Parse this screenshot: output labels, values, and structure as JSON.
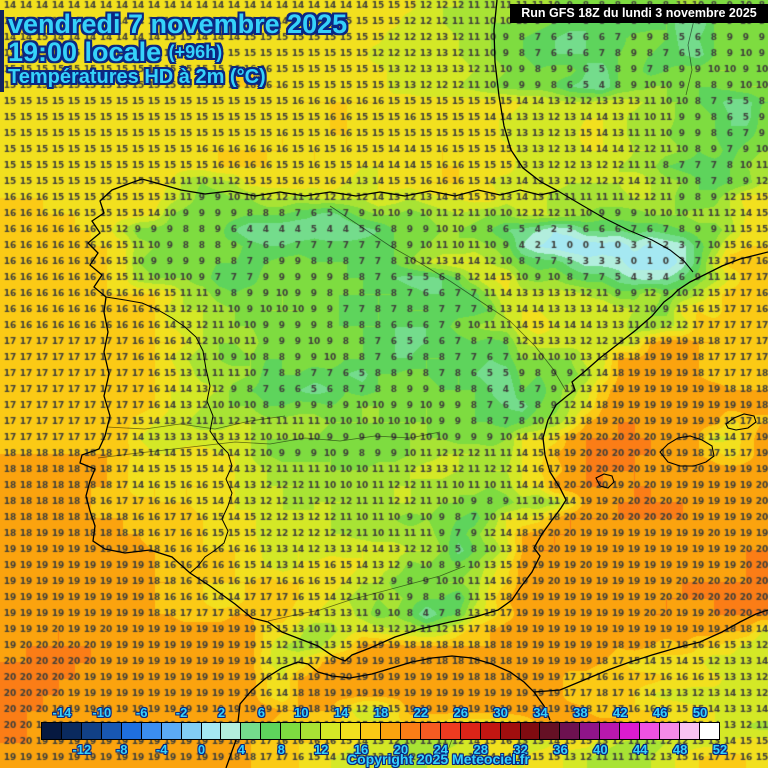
{
  "header": {
    "date_line": "vendredi 7 novembre 2025",
    "time_line": "19:00 locale",
    "time_offset": "(+96h)",
    "subtitle": "Températures HD à 2m (°C)"
  },
  "run_info": "Run GFS 18Z du lundi 3 novembre 2025",
  "copyright": "Copyright 2025 Meteociel.fr",
  "legend": {
    "min": -16,
    "max": 52,
    "step": 2,
    "top_labels": [
      -14,
      -10,
      -6,
      -2,
      2,
      6,
      10,
      14,
      18,
      22,
      26,
      30,
      34,
      38,
      42,
      46,
      50
    ],
    "bottom_labels": [
      -12,
      -8,
      -4,
      0,
      4,
      8,
      12,
      16,
      20,
      24,
      28,
      32,
      36,
      40,
      44,
      48,
      52
    ],
    "palette": [
      "#061940",
      "#0a2a5e",
      "#114086",
      "#1857b2",
      "#1f6fde",
      "#3b8ef0",
      "#5cabf5",
      "#82cdf5",
      "#a5e8f2",
      "#b2eedd",
      "#74dc8c",
      "#5ed45c",
      "#7edc40",
      "#a8e334",
      "#d4e826",
      "#f2e01e",
      "#fbca15",
      "#fba30e",
      "#fb7d16",
      "#f65b22",
      "#ee3b20",
      "#dc2418",
      "#c21612",
      "#a10e0e",
      "#800b10",
      "#651024",
      "#6d1150",
      "#8f1489",
      "#b818ad",
      "#dc1bd0",
      "#ef52e2",
      "#f58ae8",
      "#f9c2f2",
      "#ffffff"
    ]
  },
  "map": {
    "cols": 48,
    "rows": 48,
    "number_color": "#3f3f3b",
    "values": [
      "14 14 14 14 14 14 14 14 14 14 14 14 14 14 14 14 14 14 14 14 14 14 14 15 15 15 12 12 12 11 11 11 11 11 10 9 8 8 8 8 8 8 11 10 8 9 10 8",
      "14 14 14 14 14 14 14 14 14 14 14 14 14 14 14 14 14 14 14 14 15 15 15 15 15 12 12 12 11 11 10 10 10 9 8 7 6 6 6 6 7 8 4 4 8 9 10 8",
      "14 14 15 14 14 14 14 14 14 14 15 15 14 14 14 15 15 15 15 15 15 15 15 15 12 12 12 13 12 11 10 9 8 7 6 5 6 6 7 9 9 8 5 6 8 9 9 9",
      "15 15 15 15 15 15 15 15 15 15 15 15 15 15 15 15 15 15 15 15 15 15 15 12 12 12 13 13 12 11 10 9 8 7 6 6 6 7 8 9 8 7 6 5 8 9 10 9",
      "15 15 15 15 15 15 15 15 15 15 15 15 15 15 16 16 16 15 15 15 15 15 15 15 13 12 13 13 13 12 11 10 9 8 9 9 6 5 8 9 7 8 9 9 10 10 9 10",
      "15 15 15 15 15 15 15 15 15 15 15 15 15 15 16 16 16 16 15 15 15 15 15 15 13 13 12 12 12 11 10 9 9 9 8 6 5 4 8 9 10 10 9 8 8 9 10 10",
      "15 15 15 15 15 15 15 15 15 15 15 15 15 15 15 15 15 15 16 16 16 16 16 16 15 15 15 15 15 15 15 15 14 14 13 12 12 13 13 13 11 10 10 8 7 5 5 8",
      "15 15 15 15 15 15 15 15 15 15 15 15 15 15 15 15 15 15 15 15 16 16 15 15 15 16 15 15 15 15 14 14 13 13 12 13 14 14 13 11 10 11 9 9 8 6 5 9",
      "15 15 15 15 15 15 15 15 15 15 15 15 15 15 15 15 15 16 15 15 16 16 15 15 15 15 15 15 15 15 15 13 13 13 12 13 15 14 13 11 11 10 9 9 8 6 7 9",
      "15 15 15 15 15 15 15 15 15 15 15 15 16 16 16 16 16 16 15 16 15 16 15 15 14 14 15 16 15 15 15 15 13 13 12 13 14 14 14 12 12 11 10 8 9 7 9 10",
      "15 15 15 15 15 15 15 15 15 15 15 15 15 16 16 16 16 15 15 16 15 15 14 14 14 14 15 16 16 15 15 15 13 13 12 12 13 12 12 11 11 8 7 7 7 8 10 11",
      "15 15 15 15 15 15 15 15 15 15 14 11 10 11 12 15 15 15 16 15 16 14 13 14 15 15 16 16 16 15 14 13 14 13 13 12 12 12 12 14 12 11 10 8 7 8 9 12",
      "16 16 16 15 15 15 15 15 15 15 13 11 9 9 10 10 12 12 11 12 12 12 12 14 13 12 13 14 14 15 15 13 14 13 11 11 11 11 11 12 12 11 9 8 9 12 15 15",
      "16 16 16 16 16 15 15 15 15 14 10 9 9 9 9 8 8 8 7 6 5 7 9 10 10 9 10 11 12 11 10 10 12 12 12 11 10 9 9 9 10 10 10 11 11 12 14 15",
      "16 16 16 16 16 16 15 12 9 9 9 8 8 9 6 4 4 4 4 5 4 4 5 6 8 9 9 10 10 9 8 6 5 4 2 3 6 6 6 7 6 7 8 9 9 11 15 15",
      "16 16 16 16 16 16 16 15 11 10 9 8 8 8 9 7 6 6 7 7 7 7 7 7 8 9 10 11 10 11 10 9 4 2 1 0 0 1 0 3 1 2 3 7 10 15 16 16",
      "16 16 16 16 16 16 16 15 10 9 9 9 9 8 8 7 8 9 9 8 8 8 7 7 8 10 12 13 14 14 12 10 8 7 7 5 3 3 3 0 1 0 3 7 13 17 17 16",
      "16 16 16 16 16 16 16 15 11 10 10 10 9 7 7 7 9 9 9 9 9 8 8 7 6 5 5 6 8 12 14 15 10 9 10 8 7 7 5 4 3 4 6 9 11 14 17 17",
      "16 16 16 16 16 16 16 16 16 16 15 11 11 9 8 9 9 10 9 9 8 8 8 8 8 7 6 6 7 7 11 14 13 13 13 13 12 11 9 9 12 9 10 12 15 17 17 16",
      "16 16 16 16 16 16 16 16 16 16 13 12 12 11 10 9 10 10 10 9 9 7 7 8 7 8 8 7 7 7 8 13 14 14 13 13 13 14 13 12 10 9 15 16 15 17 17 16",
      "16 16 16 16 16 16 16 16 16 16 14 13 12 11 10 10 9 9 9 9 8 8 8 8 6 6 6 7 9 10 11 11 14 15 14 14 14 13 13 11 10 12 12 17 17 17 17 17",
      "17 17 17 17 17 17 17 17 16 16 16 14 12 10 10 11 9 9 9 10 9 8 8 7 6 5 6 6 7 8 7 8 12 13 13 13 12 12 13 13 18 19 19 18 18 17 17 17",
      "17 17 17 17 17 17 17 17 16 16 14 12 11 10 9 10 8 8 9 9 10 8 8 7 6 6 8 8 7 7 6 7 10 10 10 10 13 13 18 18 19 19 19 18 17 17 17 17",
      "17 17 17 17 17 17 17 17 17 16 15 13 11 11 11 10 7 8 8 7 7 6 5 8 8 9 8 7 8 6 5 5 9 8 9 9 11 14 18 19 19 19 19 18 17 17 17 18",
      "17 17 17 17 17 17 17 17 17 16 14 14 13 12 9 8 7 6 6 5 6 8 7 8 8 9 9 8 8 8 6 4 8 7 9 11 13 17 19 19 19 19 19 19 19 18 18 18",
      "17 17 17 17 17 17 17 17 17 16 14 13 12 10 10 10 8 8 9 9 8 9 10 10 9 9 10 9 9 8 7 6 5 8 9 12 14 18 19 19 19 19 19 19 19 19 19 18",
      "17 17 17 17 17 17 17 17 15 14 13 12 11 11 12 12 11 11 11 11 10 10 10 10 10 10 10 9 9 8 8 7 8 10 11 13 18 19 20 20 19 19 19 19 19 15 17 18",
      "17 17 17 17 17 17 17 17 14 13 13 13 13 13 13 12 10 10 10 10 9 9 9 9 9 10 10 10 9 9 9 10 14 14 15 19 20 20 20 20 20 19 19 18 13 14 17 19",
      "18 18 18 18 18 18 18 17 15 14 14 15 15 14 14 12 10 9 9 9 10 9 8 9 9 10 11 12 12 12 11 11 14 15 18 19 20 20 20 20 20 19 19 18 17 15 17 19",
      "18 18 18 18 18 18 18 17 14 15 15 15 15 14 14 13 12 11 11 11 10 10 10 11 11 12 13 13 12 11 12 12 14 16 17 19 20 20 20 20 19 19 19 20 19 19 19 19",
      "18 18 18 18 18 18 18 17 14 16 15 16 16 15 14 13 12 12 12 11 10 10 10 11 12 12 11 11 10 11 10 11 14 14 19 20 20 20 19 20 20 19 19 19 19 19 19 20",
      "18 18 18 18 18 18 16 17 17 16 16 16 15 14 14 13 12 12 11 12 12 12 11 11 12 12 11 10 10 9 8 9 11 10 11 14 19 19 20 20 20 20 20 19 19 19 19 20",
      "18 18 18 18 18 18 18 18 16 16 17 17 16 15 14 15 12 12 13 12 12 11 10 11 10 9 10 9 8 7 10 14 14 15 18 20 20 20 20 20 20 20 20 19 19 19 19 20",
      "18 18 19 19 18 18 18 18 18 16 17 16 16 15 15 15 12 12 12 12 12 12 11 10 11 11 11 9 7 9 12 14 18 19 20 20 19 19 19 19 19 19 19 19 20 19 19 19",
      "19 19 19 19 19 19 19 19 19 18 16 16 16 16 16 16 13 13 14 12 13 13 14 14 13 12 12 10 5 8 10 13 18 20 20 19 19 19 19 19 19 19 19 19 19 19 20 20",
      "19 19 19 19 19 19 19 19 19 18 16 16 16 16 16 15 14 13 14 15 16 15 14 13 12 9 10 8 9 10 13 15 19 19 19 19 20 19 19 19 19 19 19 19 19 19 20 20",
      "19 19 19 19 19 19 19 19 19 18 18 16 16 16 16 16 17 16 16 16 15 14 12 12 9 8 9 10 10 11 14 16 19 19 20 19 19 19 19 19 19 19 20 20 20 20 20 20",
      "19 19 19 19 19 19 19 19 19 18 16 16 16 14 14 17 17 17 16 15 14 12 11 10 11 9 8 8 6 11 15 18 19 19 19 19 19 19 19 19 19 20 20 20 20 20 20 20",
      "19 19 19 19 19 19 19 19 19 18 18 17 17 17 18 18 17 17 15 14 13 13 11 9 10 8 4 7 8 13 15 17 19 19 19 19 19 19 19 19 20 20 19 19 20 20 20 20",
      "19 19 19 20 19 19 20 19 19 19 19 19 19 19 19 19 15 15 13 10 11 13 14 13 12 12 11 12 15 17 18 19 19 19 19 19 19 19 19 19 19 19 19 19 19 18 18 14",
      "19 20 20 20 20 20 19 19 19 19 19 19 19 19 19 19 15 12 11 11 13 15 19 19 19 18 18 18 18 18 18 18 19 19 19 19 19 19 18 19 18 17 18 16 16 15 13 12",
      "20 20 20 20 20 20 19 19 19 19 19 19 19 19 19 19 14 13 14 17 19 19 19 19 18 18 18 18 18 18 18 18 19 19 19 19 19 18 17 15 14 15 14 15 12 13 13 14",
      "20 20 20 20 20 19 19 19 19 19 19 19 19 19 19 19 16 14 18 19 19 20 19 19 19 19 19 19 19 18 18 18 19 19 19 17 17 16 16 17 17 16 16 16 15 13 13 12",
      "20 20 20 20 19 19 19 19 19 19 19 19 19 19 19 19 16 14 18 18 19 19 19 19 19 19 19 19 19 19 19 19 19 19 19 17 17 18 17 16 14 13 13 12 13 14 13 12",
      "20 20 20 19 19 19 19 19 19 19 19 19 19 19 19 19 19 18 18 18 18 15 12 12 15 19 19 19 19 19 19 19 19 19 19 19 18 17 17 16 16 16 15 15 14 13 13 14",
      "20 20 19 19 19 19 19 19 19 19 19 19 19 19 19 19 18 17 16 16 16 16 15 15 16 15 15 14 13 13 13 14 16 18 19 19 19 19 19 16 16 16 15 15 14 13 12 11",
      "20 20 19 19 19 19 19 19 19 19 19 19 19 19 19 18 17 16 16 16 16 15 14 13 12 10 11 11 12 14 15 16 13 13 14 15 15 13 12 11 11 12 12 13 13 14 15 15",
      "19 19 19 19 19 19 19 19 19 19 19 19 19 19 18 18 17 17 16 15 14 13 12 12 12 12 12 13 13 13 14 14 14 15 15 13 12 11 11 11 12 13 15 16 17 17 16 15"
    ]
  }
}
